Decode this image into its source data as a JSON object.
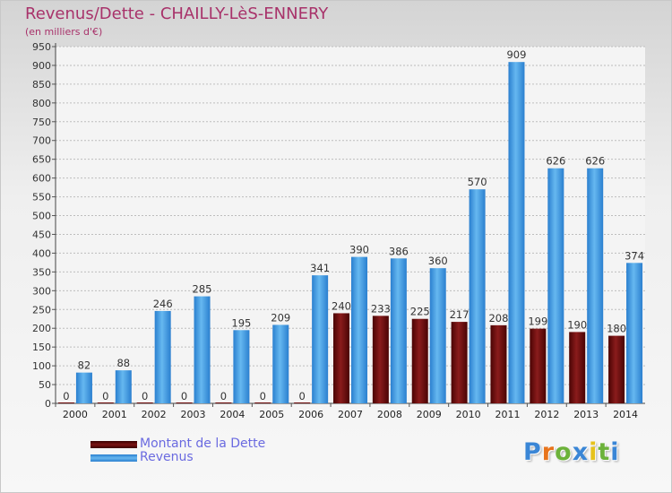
{
  "chart_data": {
    "type": "bar",
    "title": "Revenus/Dette - CHAILLY-LèS-ENNERY",
    "subtitle": "(en milliers d'€)",
    "xlabel": "",
    "ylabel": "",
    "categories": [
      "2000",
      "2001",
      "2002",
      "2003",
      "2004",
      "2005",
      "2006",
      "2007",
      "2008",
      "2009",
      "2010",
      "2011",
      "2012",
      "2013",
      "2014"
    ],
    "ylim": [
      0,
      950
    ],
    "yticks": [
      0,
      50,
      100,
      150,
      200,
      250,
      300,
      350,
      400,
      450,
      500,
      550,
      600,
      650,
      700,
      750,
      800,
      850,
      900,
      950
    ],
    "grid": true,
    "legend_position": "bottom-left",
    "series": [
      {
        "name": "Montant de la Dette",
        "color": "#6e0c0c",
        "values": [
          0,
          0,
          0,
          0,
          0,
          0,
          0,
          240,
          233,
          225,
          217,
          208,
          199,
          190,
          180
        ],
        "labels": [
          "0",
          "0",
          "0",
          "0",
          "0",
          "0",
          "0",
          "240",
          "233",
          "225",
          "217",
          "208",
          "199",
          "190",
          "180"
        ]
      },
      {
        "name": "Revenus",
        "color": "#4aa3e6",
        "values": [
          82,
          88,
          246,
          285,
          195,
          209,
          341,
          390,
          386,
          360,
          570,
          909,
          626,
          626,
          374
        ],
        "labels": [
          "82",
          "88",
          "246",
          "285",
          "195",
          "209",
          "341",
          "390",
          "386",
          "360",
          "570",
          "909",
          "626",
          "626",
          "374"
        ]
      }
    ]
  },
  "logo": {
    "letters": [
      "P",
      "r",
      "o",
      "x",
      "i",
      "t",
      "i"
    ],
    "colors": [
      "#3a86d6",
      "#e8741c",
      "#6cb23a",
      "#3a86d6",
      "#e6c21c",
      "#6cb23a",
      "#3a86d6"
    ]
  }
}
